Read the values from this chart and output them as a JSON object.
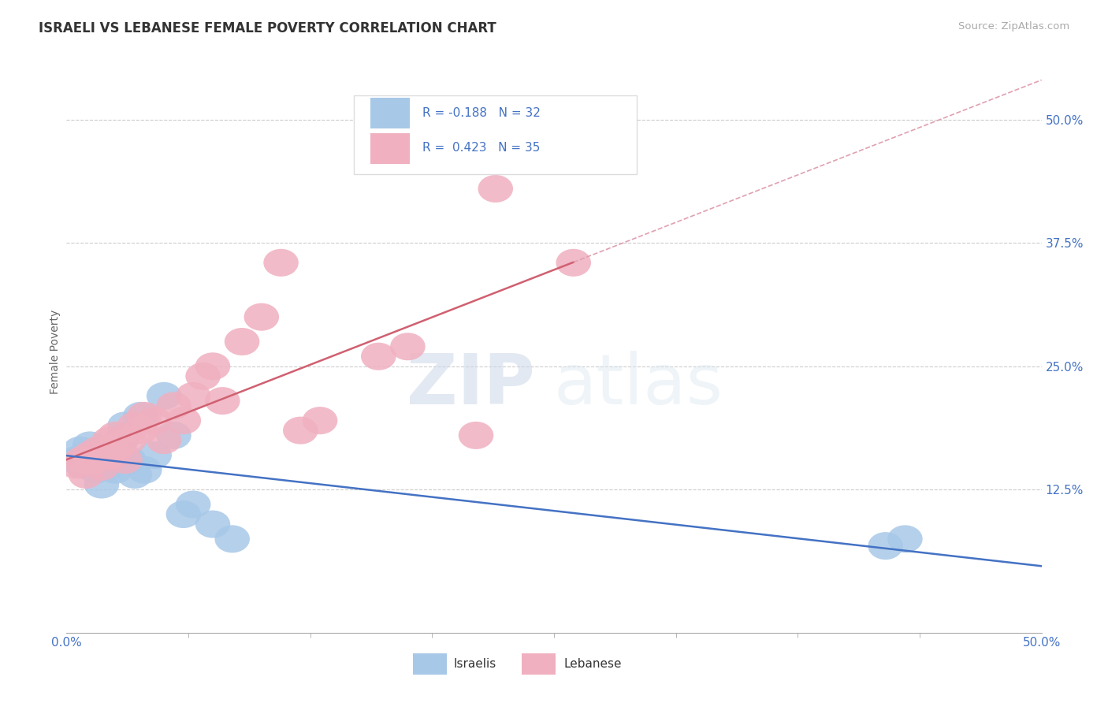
{
  "title": "ISRAELI VS LEBANESE FEMALE POVERTY CORRELATION CHART",
  "source": "Source: ZipAtlas.com",
  "ylabel": "Female Poverty",
  "xlim": [
    0.0,
    0.5
  ],
  "ylim": [
    -0.02,
    0.55
  ],
  "plot_ylim": [
    -0.02,
    0.55
  ],
  "xtick_positions": [
    0.0,
    0.5
  ],
  "xtick_labels": [
    "0.0%",
    "50.0%"
  ],
  "ytick_positions": [
    0.125,
    0.25,
    0.375,
    0.5
  ],
  "ytick_labels": [
    "12.5%",
    "25.0%",
    "37.5%",
    "50.0%"
  ],
  "background_color": "#ffffff",
  "grid_color": "#cccccc",
  "israeli_color": "#a8c8e8",
  "lebanese_color": "#f0b0c0",
  "israeli_R": -0.188,
  "lebanese_R": 0.423,
  "israeli_N": 32,
  "lebanese_N": 35,
  "israeli_line_color": "#4472c4",
  "lebanese_line_color": "#d06070",
  "lebanese_dash_color": "#e0a0b0",
  "watermark_zip": "ZIP",
  "watermark_atlas": "atlas",
  "watermark_color": "#d8e4f0",
  "legend_R_color": "#4472c4",
  "legend_label_israelis": "Israelis",
  "legend_label_lebanese": "Lebanese",
  "israeli_x": [
    0.005,
    0.007,
    0.008,
    0.01,
    0.012,
    0.015,
    0.015,
    0.016,
    0.017,
    0.018,
    0.019,
    0.02,
    0.021,
    0.022,
    0.023,
    0.025,
    0.027,
    0.028,
    0.03,
    0.032,
    0.035,
    0.038,
    0.04,
    0.045,
    0.05,
    0.055,
    0.06,
    0.065,
    0.075,
    0.085,
    0.42,
    0.43
  ],
  "israeli_y": [
    0.155,
    0.165,
    0.15,
    0.16,
    0.17,
    0.145,
    0.155,
    0.16,
    0.165,
    0.13,
    0.15,
    0.158,
    0.148,
    0.152,
    0.162,
    0.145,
    0.155,
    0.175,
    0.19,
    0.155,
    0.14,
    0.2,
    0.145,
    0.16,
    0.22,
    0.18,
    0.1,
    0.11,
    0.09,
    0.075,
    0.068,
    0.075
  ],
  "lebanese_x": [
    0.005,
    0.008,
    0.01,
    0.012,
    0.014,
    0.016,
    0.018,
    0.02,
    0.022,
    0.024,
    0.025,
    0.027,
    0.03,
    0.032,
    0.035,
    0.038,
    0.04,
    0.045,
    0.05,
    0.055,
    0.06,
    0.065,
    0.07,
    0.075,
    0.08,
    0.09,
    0.1,
    0.11,
    0.12,
    0.13,
    0.16,
    0.175,
    0.21,
    0.22,
    0.26
  ],
  "lebanese_y": [
    0.15,
    0.155,
    0.14,
    0.16,
    0.155,
    0.165,
    0.148,
    0.158,
    0.175,
    0.16,
    0.18,
    0.17,
    0.155,
    0.175,
    0.19,
    0.185,
    0.2,
    0.195,
    0.175,
    0.21,
    0.195,
    0.22,
    0.24,
    0.25,
    0.215,
    0.275,
    0.3,
    0.355,
    0.185,
    0.195,
    0.26,
    0.27,
    0.18,
    0.43,
    0.355
  ]
}
